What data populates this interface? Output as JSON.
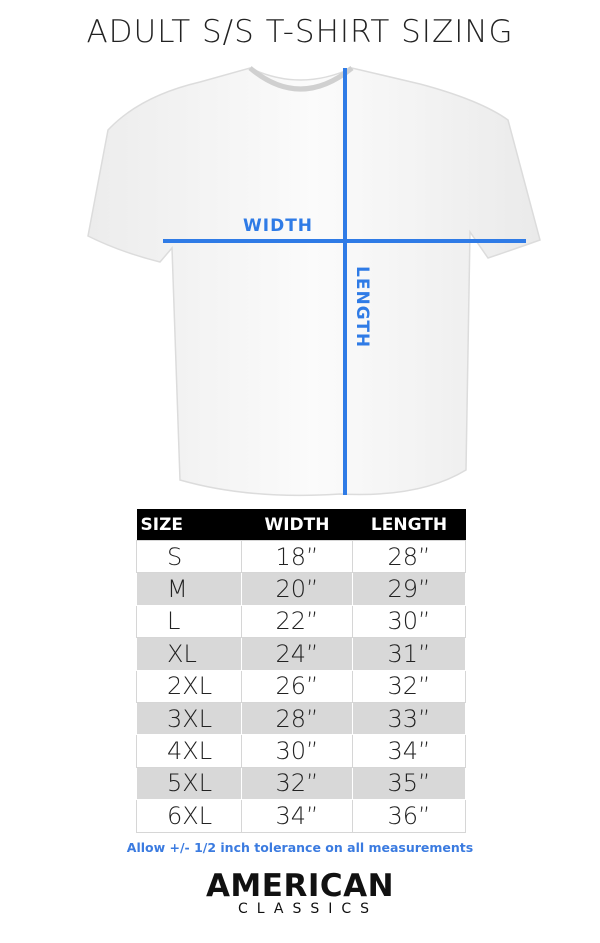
{
  "title": "ADULT S/S T-SHIRT SIZING",
  "diagram": {
    "width_label": "WIDTH",
    "length_label": "LENGTH",
    "line_color": "#2f7be6"
  },
  "table": {
    "headers": [
      "SIZE",
      "WIDTH",
      "LENGTH"
    ],
    "rows": [
      [
        "S",
        "18”",
        "28”"
      ],
      [
        "M",
        "20”",
        "29”"
      ],
      [
        "L",
        "22”",
        "30”"
      ],
      [
        "XL",
        "24”",
        "31”"
      ],
      [
        "2XL",
        "26”",
        "32”"
      ],
      [
        "3XL",
        "28”",
        "33”"
      ],
      [
        "4XL",
        "30”",
        "34”"
      ],
      [
        "5XL",
        "32”",
        "35”"
      ],
      [
        "6XL",
        "34”",
        "36”"
      ]
    ]
  },
  "note": "Allow +/- 1/2 inch tolerance on all measurements",
  "brand": {
    "line1": "AMERICAN",
    "line2": "CLASSICS"
  }
}
